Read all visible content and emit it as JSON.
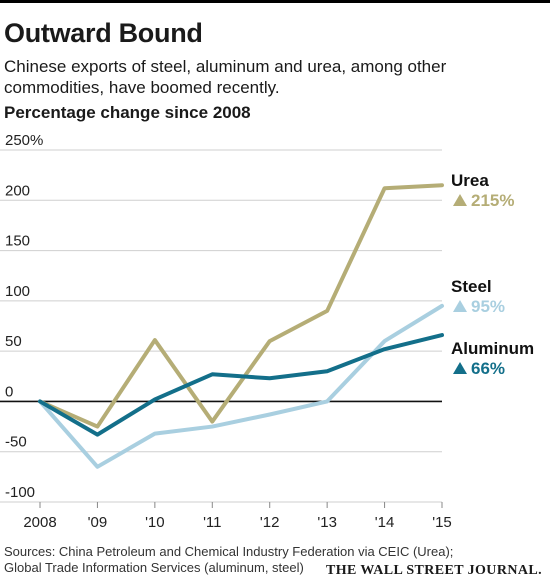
{
  "header": {
    "title": "Outward Bound",
    "subtitle": "Chinese exports of steel, aluminum and urea, among other commodities, have boomed recently.",
    "ylabel": "Percentage change since 2008"
  },
  "footer": {
    "sources": "Sources: China Petroleum and Chemical Industry Federation via CEIC (Urea); Global Trade Information Services (aluminum, steel)",
    "brand": "THE WALL STREET JOURNAL."
  },
  "chart_data": {
    "type": "line",
    "title": "Outward Bound",
    "subtitle": "Chinese exports of steel, aluminum and urea, among other commodities, have boomed recently.",
    "ylabel": "Percentage change since 2008",
    "xlabel": "",
    "x": [
      2008,
      2009,
      2010,
      2011,
      2012,
      2013,
      2014,
      2015
    ],
    "x_tick_labels": [
      "2008",
      "'09",
      "'10",
      "'11",
      "'12",
      "'13",
      "'14",
      "'15"
    ],
    "y_ticks": [
      250,
      200,
      150,
      100,
      50,
      0,
      -50,
      -100
    ],
    "y_tick_labels": [
      "250%",
      "200",
      "150",
      "100",
      "50",
      "0",
      "-50",
      "-100"
    ],
    "ylim": [
      -100,
      250
    ],
    "grid": true,
    "legend": "direct-labels-right",
    "series": [
      {
        "name": "Urea",
        "change_label": "215%",
        "color": "#b5ad76",
        "values": [
          0,
          -25,
          61,
          -20,
          60,
          90,
          212,
          215
        ]
      },
      {
        "name": "Steel",
        "change_label": "95%",
        "color": "#a9cfe0",
        "values": [
          0,
          -65,
          -32,
          -25,
          -13,
          0,
          60,
          95
        ]
      },
      {
        "name": "Aluminum",
        "change_label": "66%",
        "color": "#136f8a",
        "values": [
          0,
          -33,
          2,
          27,
          23,
          30,
          52,
          66
        ]
      }
    ]
  }
}
